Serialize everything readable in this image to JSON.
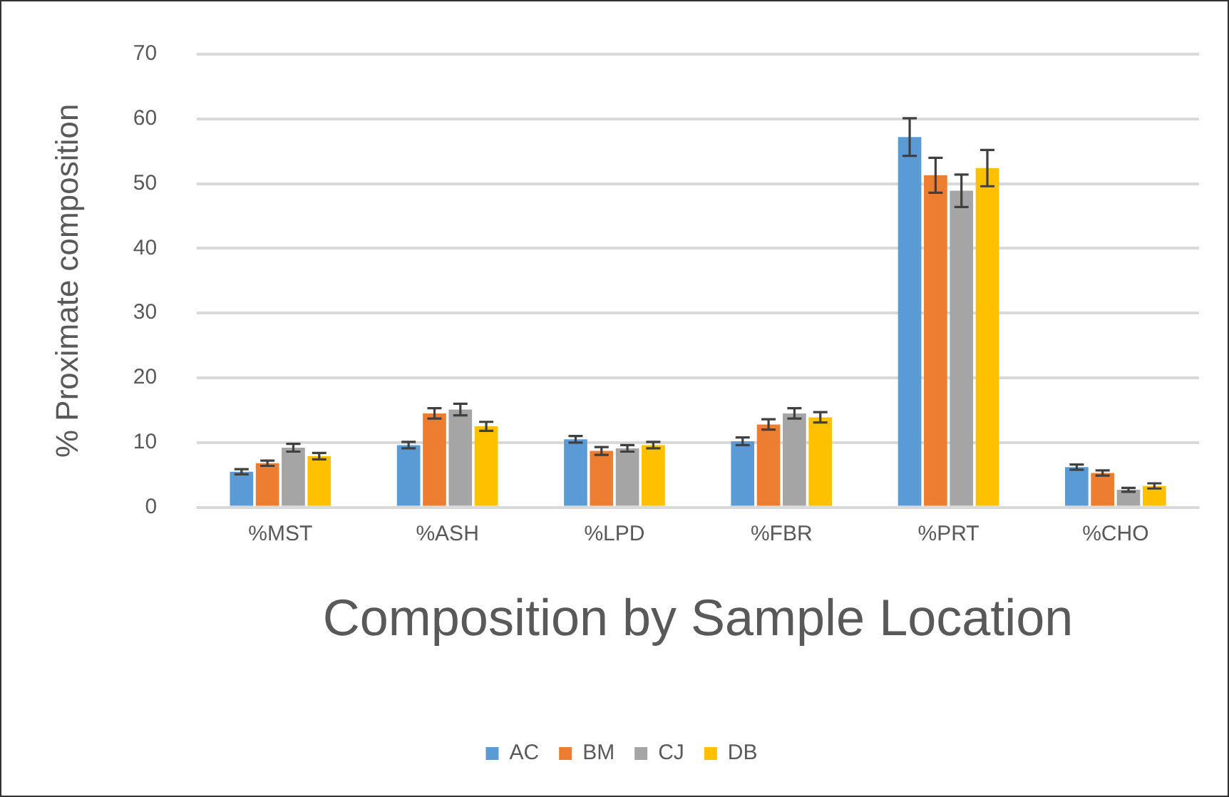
{
  "chart_data": {
    "type": "bar",
    "xlabel": "Composition by Sample Location",
    "ylabel": "% Proximate composition",
    "categories": [
      "%MST",
      "%ASH",
      "%LPD",
      "%FBR",
      "%PRT",
      "%CHO"
    ],
    "series": [
      {
        "name": "AC",
        "color": "#5b9bd5",
        "values": [
          5.5,
          9.6,
          10.5,
          10.2,
          57.2,
          6.2
        ],
        "errors": [
          0.4,
          0.5,
          0.5,
          0.6,
          2.9,
          0.4
        ]
      },
      {
        "name": "BM",
        "color": "#ed7d31",
        "values": [
          6.8,
          14.5,
          8.7,
          12.8,
          51.3,
          5.3
        ],
        "errors": [
          0.4,
          0.8,
          0.6,
          0.8,
          2.7,
          0.4
        ]
      },
      {
        "name": "CJ",
        "color": "#a5a5a5",
        "values": [
          9.2,
          15.1,
          9.1,
          14.5,
          48.9,
          2.7
        ],
        "errors": [
          0.6,
          0.9,
          0.5,
          0.8,
          2.5,
          0.3
        ]
      },
      {
        "name": "DB",
        "color": "#ffc000",
        "values": [
          7.9,
          12.5,
          9.6,
          13.9,
          52.4,
          3.3
        ],
        "errors": [
          0.5,
          0.7,
          0.5,
          0.8,
          2.8,
          0.4
        ]
      }
    ],
    "ylim": [
      0,
      70
    ],
    "yticks": [
      0,
      10,
      20,
      30,
      40,
      50,
      60,
      70
    ],
    "grid": "y",
    "legend": "bottom"
  }
}
